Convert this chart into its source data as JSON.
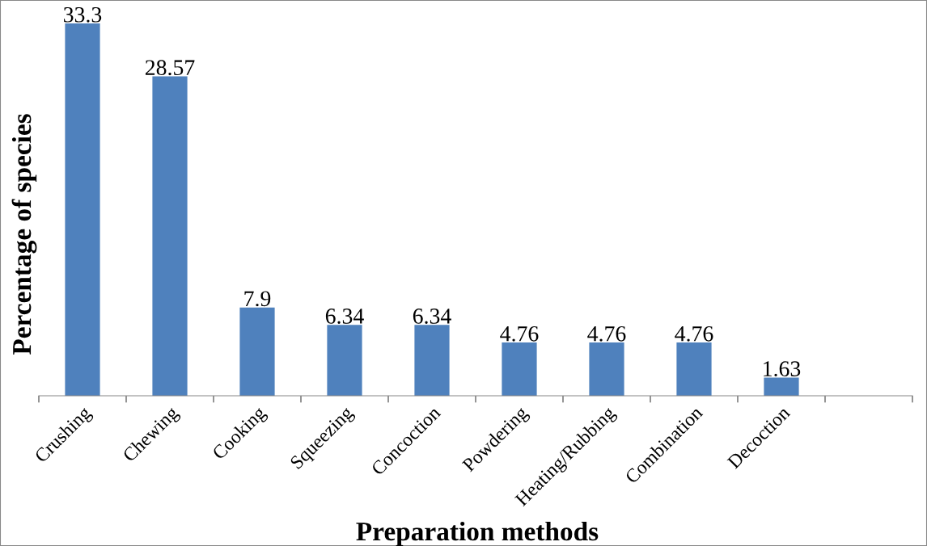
{
  "chart_data": {
    "type": "bar",
    "xlabel": "Preparation methods",
    "ylabel": "Percentage of species",
    "categories": [
      "Crushing",
      "Chewing",
      "Cooking",
      "Squeezing",
      "Concoction",
      "Powdering",
      "Heating/Rubbing",
      "Combination",
      "Decoction",
      null
    ],
    "values": [
      33.3,
      28.57,
      7.9,
      6.34,
      6.34,
      4.76,
      4.76,
      4.76,
      1.63,
      null
    ],
    "color": "#4f81bd",
    "data_labels": true,
    "grid": false,
    "legend": false,
    "tick_labels": "x"
  }
}
